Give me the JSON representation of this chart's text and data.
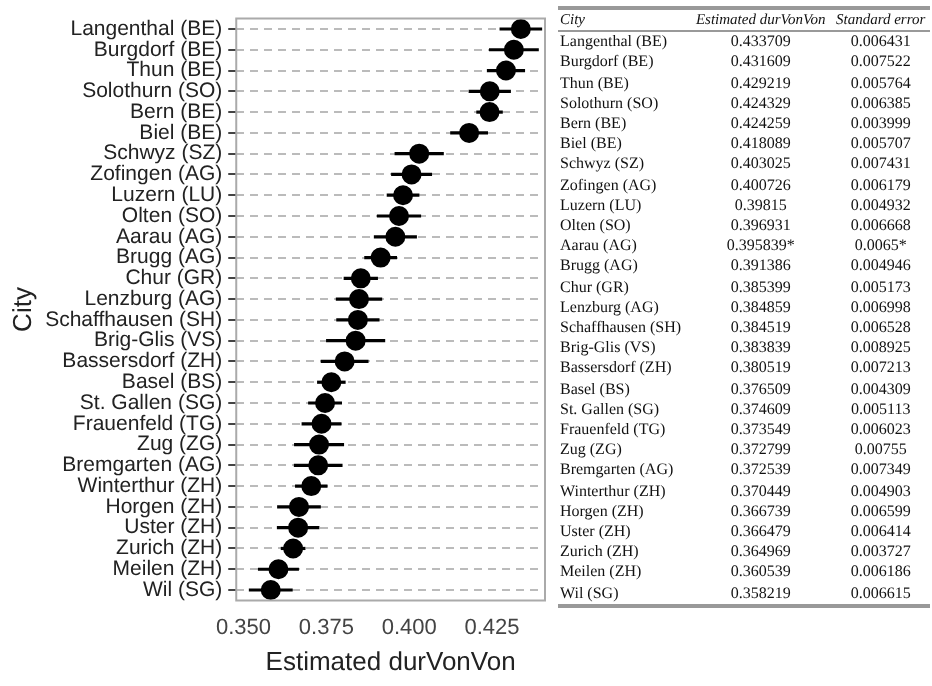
{
  "chart_data": {
    "type": "scatter",
    "orientation": "horizontal",
    "xlabel": "Estimated durVonVon",
    "ylabel": "City",
    "categories": [
      "Langenthal (BE)",
      "Burgdorf (BE)",
      "Thun (BE)",
      "Solothurn (SO)",
      "Bern (BE)",
      "Biel (BE)",
      "Schwyz (SZ)",
      "Zofingen (AG)",
      "Luzern (LU)",
      "Olten (SO)",
      "Aarau (AG)",
      "Brugg (AG)",
      "Chur (GR)",
      "Lenzburg (AG)",
      "Schaffhausen (SH)",
      "Brig-Glis (VS)",
      "Bassersdorf (ZH)",
      "Basel (BS)",
      "St. Gallen (SG)",
      "Frauenfeld (TG)",
      "Zug (ZG)",
      "Bremgarten (AG)",
      "Winterthur (ZH)",
      "Horgen (ZH)",
      "Uster (ZH)",
      "Zurich (ZH)",
      "Meilen (ZH)",
      "Wil (SG)"
    ],
    "series": [
      {
        "color": "#000000",
        "values": [
          0.433709,
          0.431609,
          0.429219,
          0.424329,
          0.424259,
          0.418089,
          0.403025,
          0.400726,
          0.39815,
          0.396931,
          0.395839,
          0.391386,
          0.385399,
          0.384859,
          0.384519,
          0.383839,
          0.380519,
          0.376509,
          0.374609,
          0.373549,
          0.372799,
          0.372539,
          0.370449,
          0.366739,
          0.366479,
          0.364969,
          0.360539,
          0.358219
        ],
        "errors": [
          0.006431,
          0.007522,
          0.005764,
          0.006385,
          0.003999,
          0.005707,
          0.007431,
          0.006179,
          0.004932,
          0.006668,
          0.0065,
          0.004946,
          0.005173,
          0.006998,
          0.006528,
          0.008925,
          0.007213,
          0.004309,
          0.005113,
          0.006023,
          0.00755,
          0.007349,
          0.004903,
          0.006599,
          0.006414,
          0.003727,
          0.006186,
          0.006615
        ],
        "value_labels": [
          "0.433709",
          "0.431609",
          "0.429219",
          "0.424329",
          "0.424259",
          "0.418089",
          "0.403025",
          "0.400726",
          "0.39815",
          "0.396931",
          "0.395839*",
          "0.391386",
          "0.385399",
          "0.384859",
          "0.384519",
          "0.383839",
          "0.380519",
          "0.376509",
          "0.374609",
          "0.373549",
          "0.372799",
          "0.372539",
          "0.370449",
          "0.366739",
          "0.366479",
          "0.364969",
          "0.360539",
          "0.358219"
        ]
      }
    ],
    "xlim": [
      0.3478,
      0.441
    ],
    "xticks": [
      {
        "value": 0.35,
        "label": "0.350"
      },
      {
        "value": 0.375,
        "label": "0.375"
      },
      {
        "value": 0.4,
        "label": "0.400"
      },
      {
        "value": 0.425,
        "label": "0.425"
      }
    ],
    "grid": "y",
    "marker": "circle",
    "annotations": [
      "City",
      "Estimated durVonVon",
      "Standard error",
      "0.006431",
      "0.007522",
      "0.005764",
      "0.006385",
      "0.003999",
      "0.005707",
      "0.007431",
      "0.006179",
      "0.004932",
      "0.006668",
      "0.0065*",
      "0.004946",
      "0.005173",
      "0.006998",
      "0.006528",
      "0.008925",
      "0.007213",
      "0.004309",
      "0.005113",
      "0.006023",
      "0.00755",
      "0.007349",
      "0.004903",
      "0.006599",
      "0.006414",
      "0.003727",
      "0.006186",
      "0.006615"
    ]
  }
}
